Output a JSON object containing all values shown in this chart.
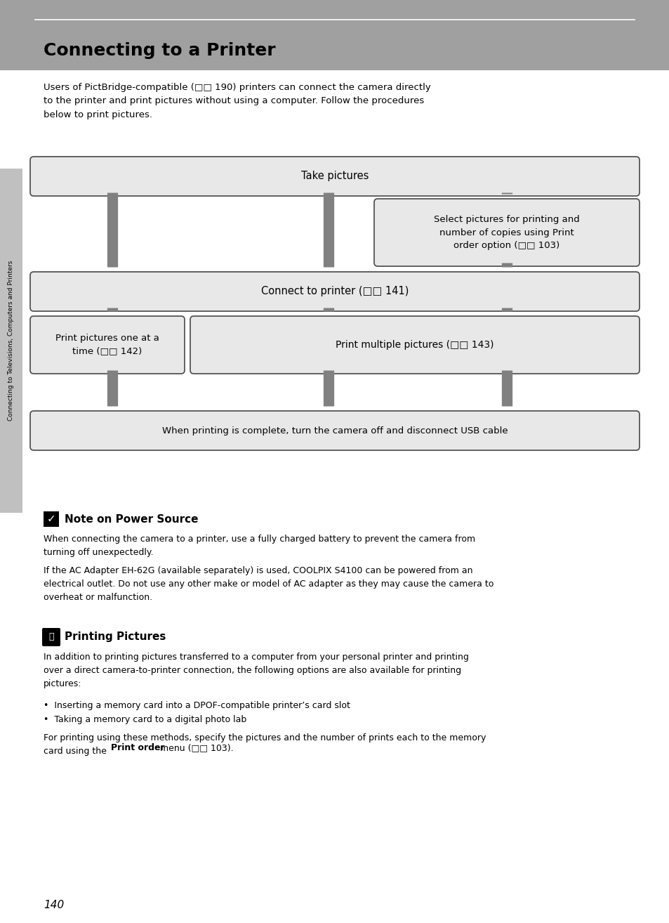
{
  "page_bg": "#ffffff",
  "header_bg": "#a0a0a0",
  "header_title": "Connecting to a Printer",
  "top_rule_color": "#ffffff",
  "sidebar_bg": "#c0c0c0",
  "sidebar_text": "Connecting to Televisions, Computers and Printers",
  "box_bg": "#e8e8e8",
  "box_border": "#555555",
  "arrow_color": "#808080",
  "intro_text": "Users of PictBridge-compatible (□□ 190) printers can connect the camera directly\nto the printer and print pictures without using a computer. Follow the procedures\nbelow to print pictures.",
  "box1_text": "Take pictures",
  "box2_text": "Select pictures for printing and\nnumber of copies using Print\norder option (□□ 103)",
  "box3_text": "Connect to printer (□□ 141)",
  "box4_text": "Print pictures one at a\ntime (□□ 142)",
  "box5_text": "Print multiple pictures (□□ 143)",
  "box6_text": "When printing is complete, turn the camera off and disconnect USB cable",
  "note1_title": "Note on Power Source",
  "note1_p1": "When connecting the camera to a printer, use a fully charged battery to prevent the camera from\nturning off unexpectedly.",
  "note1_p2": "If the AC Adapter EH-62G (available separately) is used, COOLPIX S4100 can be powered from an\nelectrical outlet. Do not use any other make or model of AC adapter as they may cause the camera to\noverheat or malfunction.",
  "note2_title": "Printing Pictures",
  "note2_p1": "In addition to printing pictures transferred to a computer from your personal printer and printing\nover a direct camera-to-printer connection, the following options are also available for printing\npictures:",
  "note2_b1": "Inserting a memory card into a DPOF-compatible printer’s card slot",
  "note2_b2": "Taking a memory card to a digital photo lab",
  "note2_p2a": "For printing using these methods, specify the pictures and the number of prints each to the memory\ncard using the ",
  "note2_p2b": "Print order",
  "note2_p2c": " menu (□□ 103).",
  "page_num": "140"
}
